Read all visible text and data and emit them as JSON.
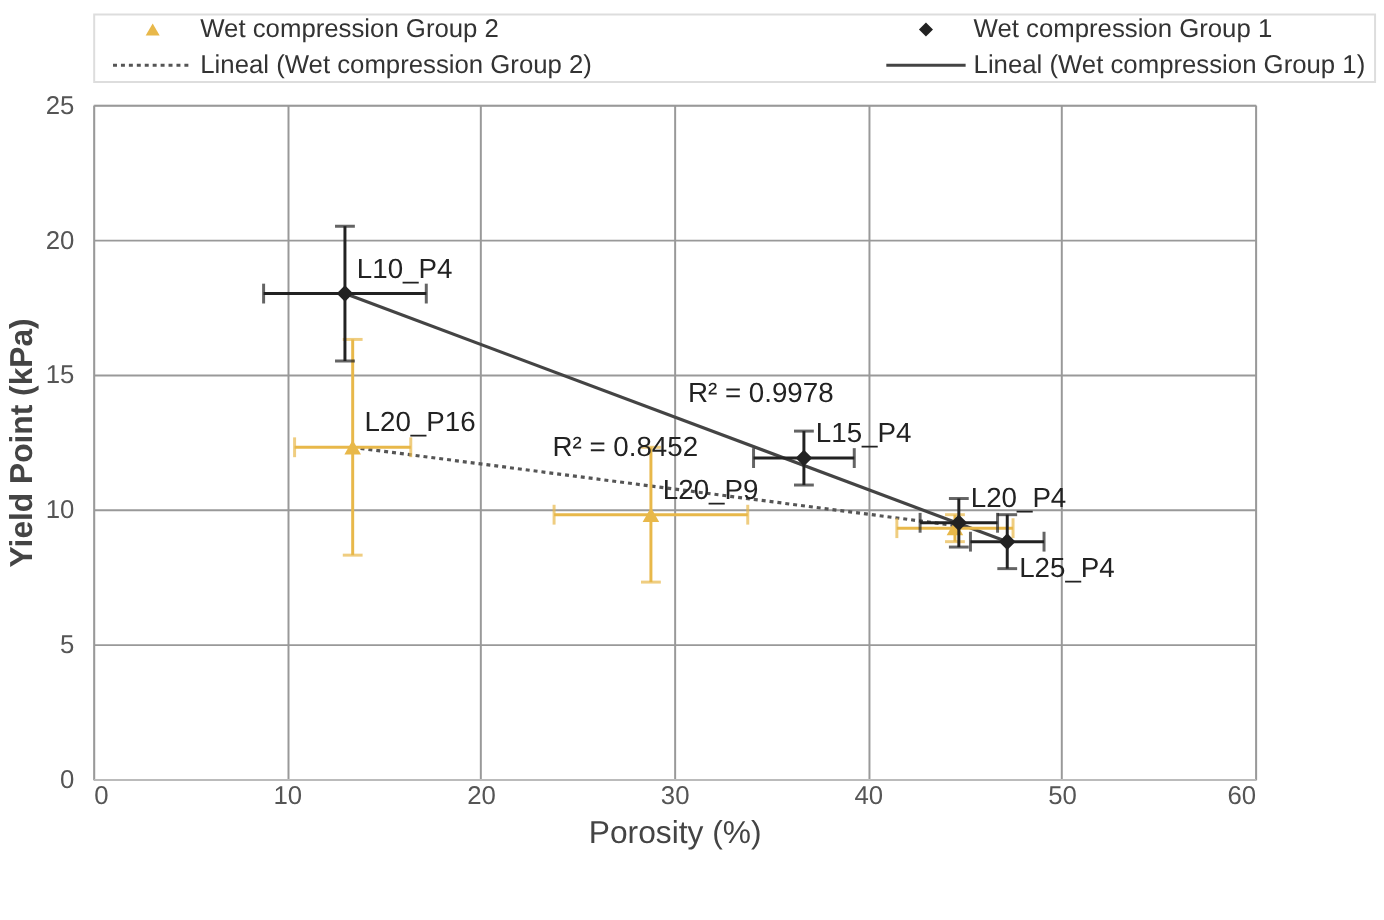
{
  "chart_data": {
    "type": "scatter",
    "xlabel": "Porosity (%)",
    "ylabel": "Yield Point (kPa)",
    "xlim": [
      0,
      60
    ],
    "xticks": [
      0,
      10,
      20,
      30,
      40,
      50,
      60
    ],
    "ylim": [
      0,
      25
    ],
    "yticks": [
      0,
      5,
      10,
      15,
      20,
      25
    ],
    "grid": true,
    "legend": "top",
    "series": [
      {
        "name": "Wet compression Group 2",
        "marker": "triangle",
        "color": "#e8b84a",
        "x": [
          13.4,
          28.8,
          44.5
        ],
        "values": [
          12.3,
          9.8,
          9.3
        ],
        "errors": [
          4,
          2.5,
          0.5
        ],
        "xerrors": [
          3,
          5,
          3
        ]
      },
      {
        "name": "Wet compression Group 1",
        "marker": "diamond",
        "color": "#222222",
        "x": [
          13,
          36.7,
          44.7,
          47.2
        ],
        "values": [
          18,
          11.9,
          9.5,
          8.8
        ],
        "errors": [
          2.5,
          1,
          0.9,
          1
        ],
        "xerrors": [
          4.2,
          2.6,
          2,
          1.9
        ]
      },
      {
        "name": "Lineal (Wet compression Group 2)",
        "type": "line",
        "line_style": "dotted",
        "color": "#555555",
        "x": [
          13.4,
          44.5
        ],
        "values": [
          12.3,
          9.4
        ]
      },
      {
        "name": "Lineal (Wet compression Group 1)",
        "type": "line",
        "line_style": "solid",
        "color": "#444444",
        "x": [
          13,
          47.2
        ],
        "values": [
          18,
          8.8
        ]
      }
    ],
    "annotations": [
      {
        "text": "L10_P4",
        "x": 13,
        "y": 18
      },
      {
        "text": "L15_P4",
        "x": 36.7,
        "y": 11.9
      },
      {
        "text": "L20_P4",
        "x": 44.7,
        "y": 9.5
      },
      {
        "text": "L25_P4",
        "x": 47.2,
        "y": 8.8
      },
      {
        "text": "L20_P16",
        "x": 13.4,
        "y": 12.3
      },
      {
        "text": "L20_P9",
        "x": 28.8,
        "y": 9.8
      },
      {
        "text": "R² = 0.9978",
        "x": 30.1,
        "y": 13.4
      },
      {
        "text": "R² = 0.8452",
        "x": 23.1,
        "y": 11.4
      }
    ]
  }
}
